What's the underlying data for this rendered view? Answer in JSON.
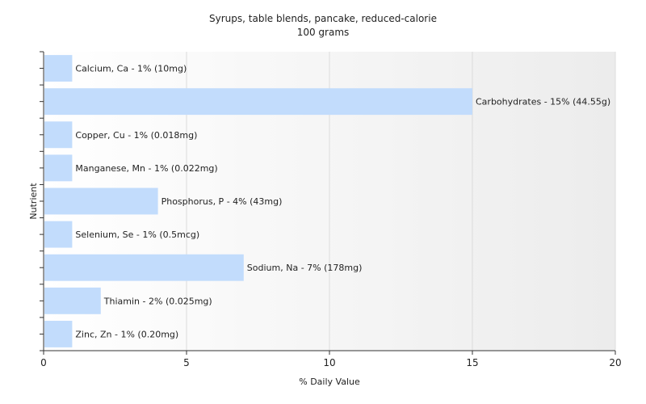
{
  "chart_data": {
    "type": "bar",
    "orientation": "horizontal",
    "title": "Syrups, table blends, pancake, reduced-calorie",
    "subtitle": "100 grams",
    "xlabel": "% Daily Value",
    "ylabel": "Nutrient",
    "xlim": [
      0,
      20
    ],
    "xticks": [
      0,
      5,
      10,
      15,
      20
    ],
    "grid": true,
    "bar_color": "#c2dcfc",
    "categories": [
      "Calcium, Ca",
      "Carbohydrates",
      "Copper, Cu",
      "Manganese, Mn",
      "Phosphorus, P",
      "Selenium, Se",
      "Sodium, Na",
      "Thiamin",
      "Zinc, Zn"
    ],
    "values": [
      1,
      15,
      1,
      1,
      4,
      1,
      7,
      2,
      1
    ],
    "labels": [
      "Calcium, Ca - 1% (10mg)",
      "Carbohydrates - 15% (44.55g)",
      "Copper, Cu - 1% (0.018mg)",
      "Manganese, Mn - 1% (0.022mg)",
      "Phosphorus, P - 4% (43mg)",
      "Selenium, Se - 1% (0.5mcg)",
      "Sodium, Na - 7% (178mg)",
      "Thiamin - 2% (0.025mg)",
      "Zinc, Zn - 1% (0.20mg)"
    ]
  }
}
